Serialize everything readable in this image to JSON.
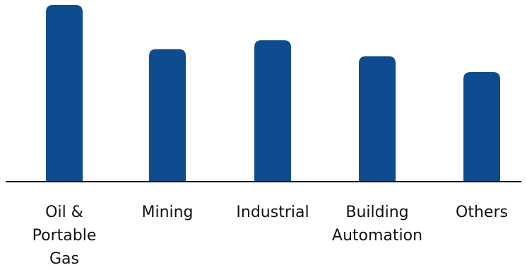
{
  "chart_data": {
    "type": "bar",
    "title": "",
    "xlabel": "",
    "ylabel": "",
    "categories": [
      [
        "Oil &",
        "Portable",
        "Gas"
      ],
      [
        "Mining"
      ],
      [
        "Industrial"
      ],
      [
        "Building",
        "Automation"
      ],
      [
        "Others"
      ]
    ],
    "values": [
      100,
      75,
      80,
      71,
      62
    ],
    "ylim": [
      0,
      100
    ],
    "grid": false,
    "legend": "none",
    "bar_color": "#0f4c8f",
    "axis_color": "#111111"
  }
}
